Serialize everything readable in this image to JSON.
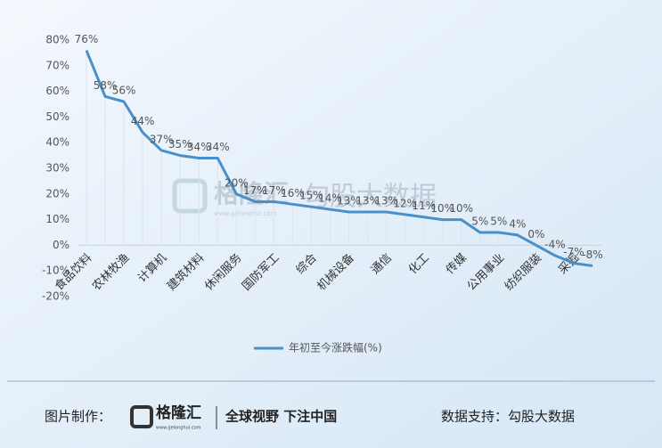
{
  "chart_data": {
    "type": "line",
    "categories": [
      "食品饮料",
      null,
      "农林牧渔",
      null,
      "计算机",
      null,
      "建筑材料",
      null,
      "休闲服务",
      null,
      "国防军工",
      null,
      "综合",
      null,
      "机械设备",
      null,
      "通信",
      null,
      "化工",
      null,
      "传媒",
      null,
      "公用事业",
      null,
      "纺织服装",
      null,
      "采掘",
      null
    ],
    "series": [
      {
        "name": "年初至今涨跌幅(%)",
        "color": "#4a90c8",
        "values": [
          76,
          58,
          56,
          44,
          37,
          35,
          34,
          34,
          20,
          17,
          17,
          16,
          15,
          14,
          13,
          13,
          13,
          12,
          11,
          10,
          10,
          5,
          5,
          4,
          0,
          -4,
          -7,
          -8
        ],
        "value_labels": [
          "76%",
          "58%",
          "56%",
          "44%",
          "37%",
          "35%",
          "34%",
          "34%",
          "20%",
          "17%",
          "17%",
          "16%",
          "15%",
          "14%",
          "13%",
          "13%",
          "13%",
          "12%",
          "11%",
          "10%",
          "10%",
          "5%",
          "5%",
          "4%",
          "0%",
          "-4%",
          "-7%",
          "-8%"
        ]
      }
    ],
    "ylim": [
      -20,
      80
    ],
    "yticks": [
      {
        "value": -20,
        "label": "-20%"
      },
      {
        "value": -10,
        "label": "-10%"
      },
      {
        "value": 0,
        "label": "0%"
      },
      {
        "value": 10,
        "label": "10%"
      },
      {
        "value": 20,
        "label": "20%"
      },
      {
        "value": 30,
        "label": "30%"
      },
      {
        "value": 40,
        "label": "40%"
      },
      {
        "value": 50,
        "label": "50%"
      },
      {
        "value": 60,
        "label": "60%"
      },
      {
        "value": 70,
        "label": "70%"
      },
      {
        "value": 80,
        "label": "80%"
      }
    ],
    "legend": "bottom"
  },
  "footer": {
    "made_by": "图片制作：",
    "brand": "格隆汇",
    "brand_url": "www.gelonghui.com",
    "slogan": "全球视野 下注中国",
    "data_source": "数据支持：勾股大数据"
  },
  "watermark": {
    "brand": "格隆汇",
    "brand_url": "www.gelonghui.com",
    "partner": "勾股大数据"
  }
}
